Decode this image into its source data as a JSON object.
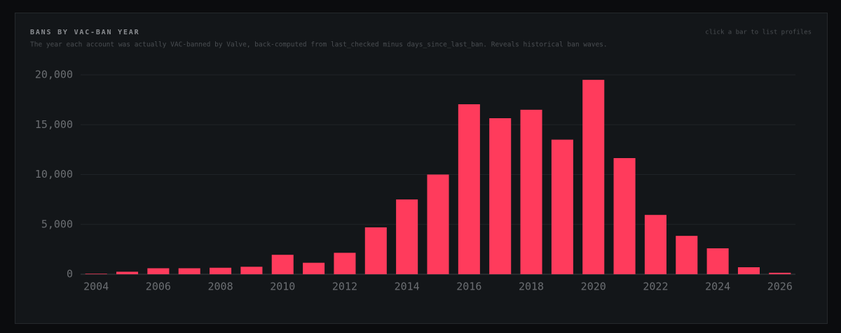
{
  "chart_data": {
    "type": "bar",
    "title": "BANS BY VAC-BAN YEAR",
    "subtitle": "The year each account was actually VAC-banned by Valve, back-computed from last_checked minus days_since_last_ban. Reveals historical ban waves.",
    "hint": "click a bar to list profiles",
    "x": [
      2004,
      2005,
      2006,
      2007,
      2008,
      2009,
      2010,
      2011,
      2012,
      2013,
      2014,
      2015,
      2016,
      2017,
      2018,
      2019,
      2020,
      2021,
      2022,
      2023,
      2024,
      2025,
      2026
    ],
    "values": [
      50,
      250,
      600,
      600,
      650,
      750,
      1950,
      1150,
      2150,
      4700,
      7500,
      10000,
      17050,
      15650,
      16500,
      13500,
      19500,
      11650,
      5950,
      3850,
      2600,
      700,
      150
    ],
    "color": "#ff3b5c",
    "xlim": [
      2003.5,
      2026.5
    ],
    "xticks": [
      2004,
      2006,
      2008,
      2010,
      2012,
      2014,
      2016,
      2018,
      2020,
      2022,
      2024,
      2026
    ],
    "ylim": [
      0,
      20000
    ],
    "yticks": [
      0,
      {
        "value": 5000,
        "label": "5,000"
      },
      {
        "value": 10000,
        "label": "10,000"
      },
      {
        "value": 15000,
        "label": "15,000"
      },
      {
        "value": 20000,
        "label": "20,000"
      }
    ],
    "grid": true
  }
}
